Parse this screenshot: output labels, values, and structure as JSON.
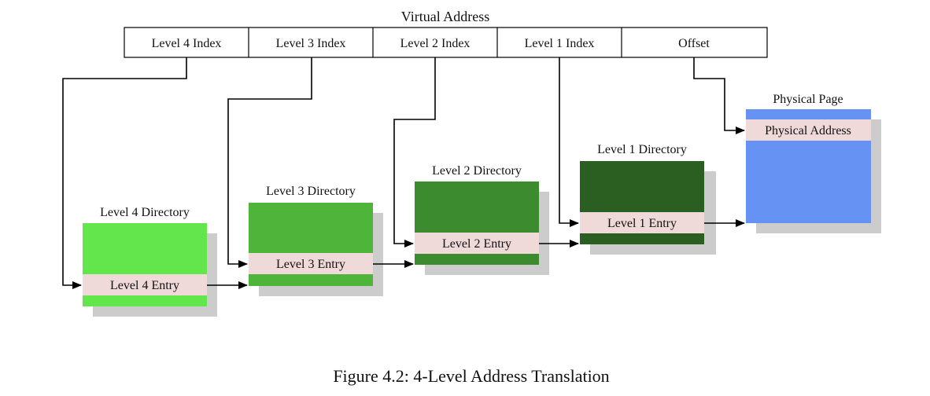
{
  "virtual_address": {
    "title": "Virtual Address",
    "fields": [
      "Level 4 Index",
      "Level 3 Index",
      "Level 2 Index",
      "Level 1 Index",
      "Offset"
    ]
  },
  "tables": [
    {
      "title": "Level 4 Directory",
      "entry": "Level 4 Entry",
      "color": "#63e54c"
    },
    {
      "title": "Level 3 Directory",
      "entry": "Level 3 Entry",
      "color": "#4eb43a"
    },
    {
      "title": "Level 2 Directory",
      "entry": "Level 2 Entry",
      "color": "#3c8b2f"
    },
    {
      "title": "Level 1 Directory",
      "entry": "Level 1 Entry",
      "color": "#2b5f22"
    }
  ],
  "physical_page": {
    "title": "Physical Page",
    "entry": "Physical Address",
    "color": "#6692f3"
  },
  "entry_color": "#f0d9d9",
  "shadow_color": "#cccccc",
  "caption": "Figure 4.2: 4-Level Address Translation"
}
